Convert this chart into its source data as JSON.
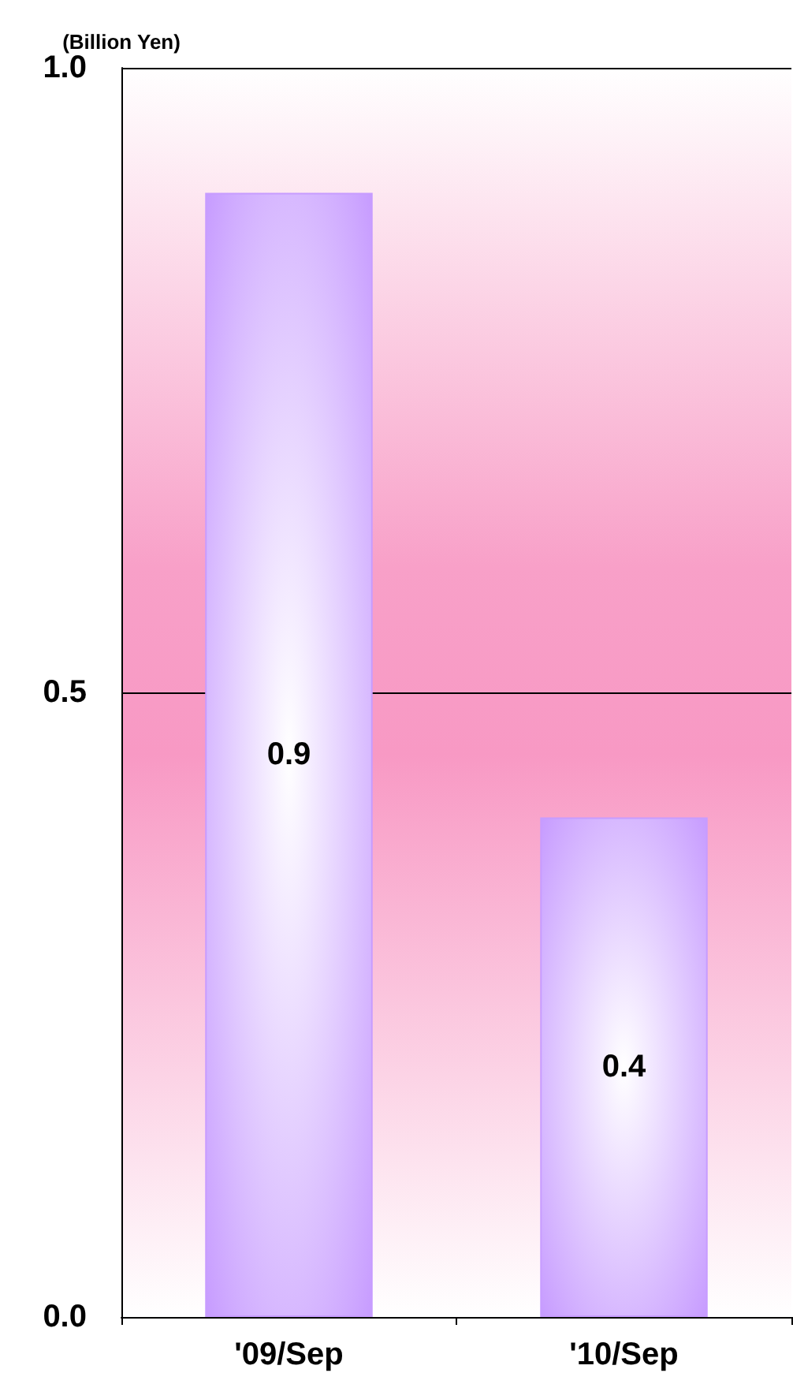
{
  "chart_data": {
    "type": "bar",
    "ylabel": "(Billion Yen)",
    "categories": [
      "'09/Sep",
      "'10/Sep"
    ],
    "values": [
      0.9,
      0.4
    ],
    "color": "#c79cff",
    "ylim": [
      0,
      1
    ],
    "yticks": [
      {
        "value": 0,
        "label": "0.0"
      },
      {
        "value": 0.5,
        "label": "0.5"
      },
      {
        "value": 1,
        "label": "1.0"
      }
    ],
    "grid": "y",
    "data_labels": true
  }
}
